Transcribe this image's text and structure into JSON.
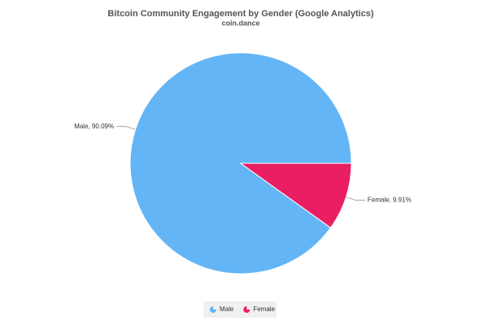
{
  "chart_data": {
    "type": "pie",
    "title": "Bitcoin Community Engagement by Gender (Google Analytics)",
    "subtitle": "coin.dance",
    "categories": [
      "Male",
      "Female"
    ],
    "values": [
      90.09,
      9.91
    ],
    "value_labels": [
      "Male, 90.09%",
      "Female, 9.91%"
    ],
    "colors": [
      "#64b5f6",
      "#e91e63"
    ],
    "legend": "bottom"
  }
}
